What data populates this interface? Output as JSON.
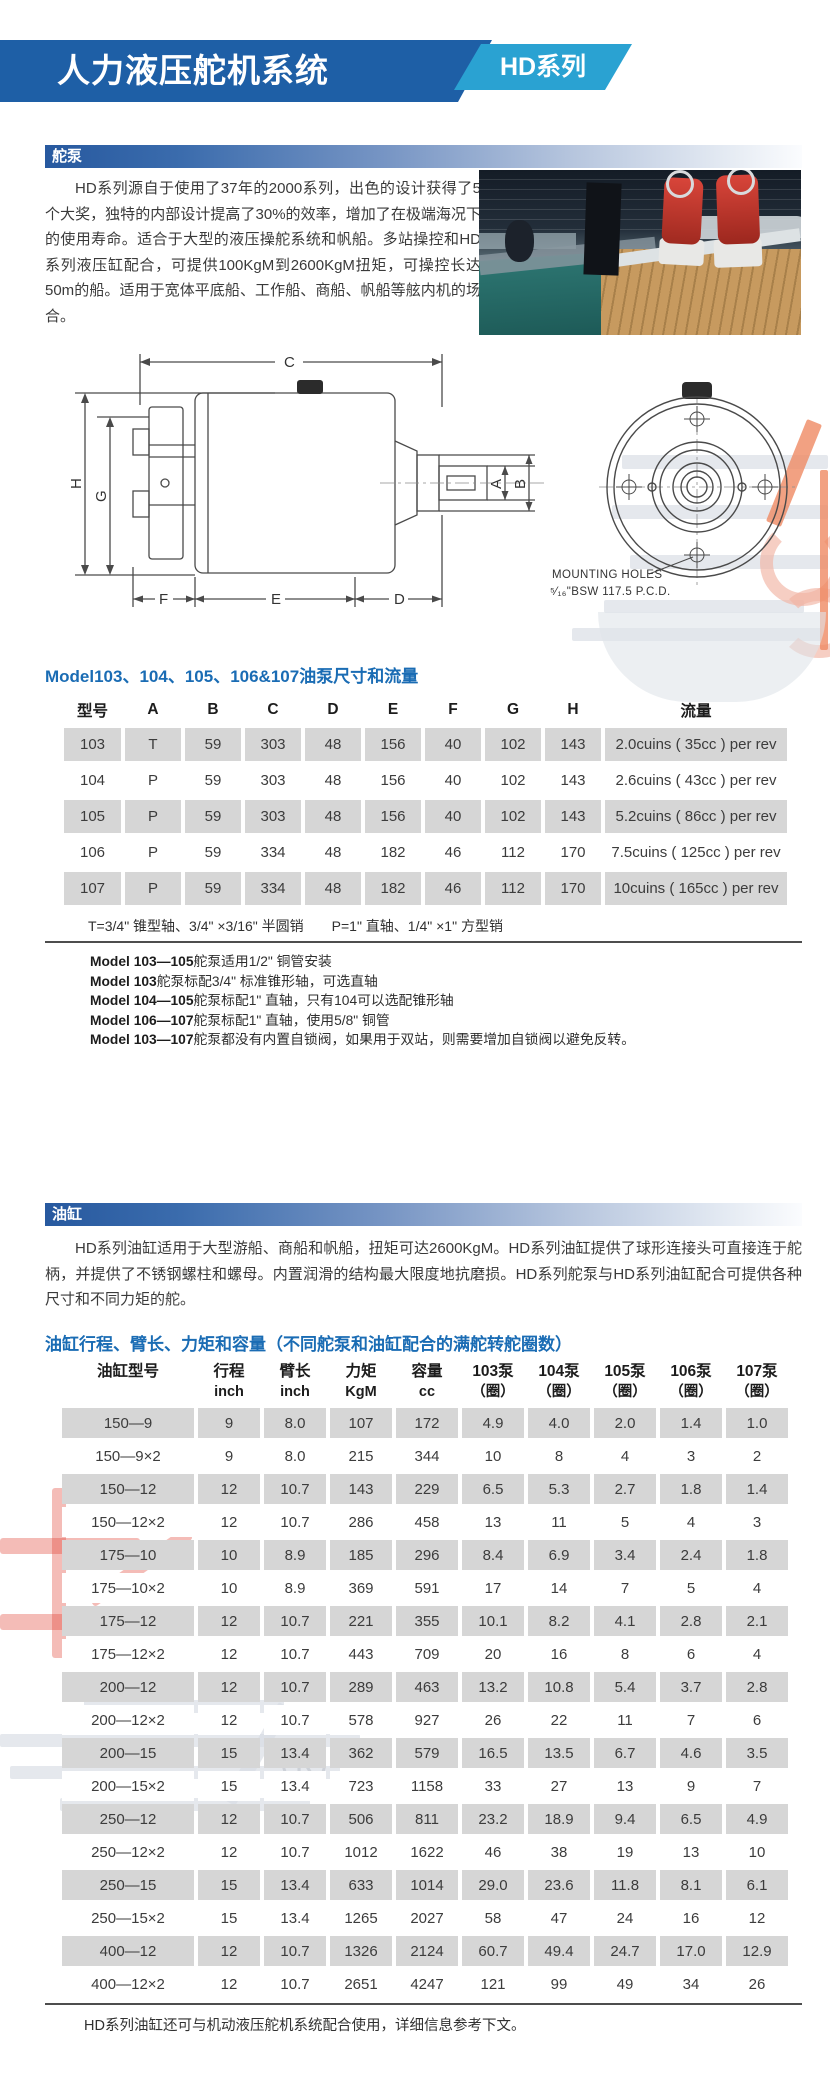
{
  "header": {
    "title": "人力液压舵机系统",
    "badge": "HD系列"
  },
  "pump": {
    "bar_title": "舵泵",
    "paragraph": "HD系列源自于使用了37年的2000系列，出色的设计获得了5个大奖，独特的内部设计提高了30%的效率，增加了在极端海况下的使用寿命。适合于大型的液压操舵系统和帆船。多站操控和HD系列液压缸配合，可提供100KgM到2600KgM扭矩，可操控长达50m的船。适用于宽体平底船、工作船、商船、帆船等舷内机的场合。",
    "diagram": {
      "labels": {
        "c": "C",
        "h": "H",
        "g": "G",
        "a": "A",
        "b": "B",
        "f": "F",
        "e": "E",
        "d": "D"
      },
      "mounting1": "MOUNTING HOLES",
      "mounting2": "⁵⁄₁₆\"BSW 117.5 P.C.D."
    }
  },
  "pump_table": {
    "title": "Model103、104、105、106&107油泵尺寸和流量",
    "columns": [
      "型号",
      "A",
      "B",
      "C",
      "D",
      "E",
      "F",
      "G",
      "H",
      "流量"
    ],
    "rows": [
      [
        "103",
        "T",
        "59",
        "303",
        "48",
        "156",
        "40",
        "102",
        "143",
        "2.0cuins ( 35cc ) per rev"
      ],
      [
        "104",
        "P",
        "59",
        "303",
        "48",
        "156",
        "40",
        "102",
        "143",
        "2.6cuins ( 43cc ) per rev"
      ],
      [
        "105",
        "P",
        "59",
        "303",
        "48",
        "156",
        "40",
        "102",
        "143",
        "5.2cuins ( 86cc ) per rev"
      ],
      [
        "106",
        "P",
        "59",
        "334",
        "48",
        "182",
        "46",
        "112",
        "170",
        "7.5cuins ( 125cc ) per rev"
      ],
      [
        "107",
        "P",
        "59",
        "334",
        "48",
        "182",
        "46",
        "112",
        "170",
        "10cuins ( 165cc ) per rev"
      ]
    ],
    "shaft_note": "T=3/4\" 锥型轴、3/4\" ×3/16\" 半圆销　　P=1\" 直轴、1/4\" ×1\" 方型销",
    "notes": [
      {
        "bold": "Model 103—105",
        "text": "舵泵适用1/2\" 铜管安装"
      },
      {
        "bold": "Model 103",
        "text": "舵泵标配3/4\" 标准锥形轴，可选直轴"
      },
      {
        "bold": "Model 104—105",
        "text": "舵泵标配1\" 直轴，只有104可以选配锥形轴"
      },
      {
        "bold": "Model 106—107",
        "text": "舵泵标配1\" 直轴，使用5/8\" 铜管"
      },
      {
        "bold": "Model 103—107",
        "text": "舵泵都没有内置自锁阀，如果用于双站，则需要增加自锁阀以避免反转。"
      }
    ]
  },
  "cylinder": {
    "bar_title": "油缸",
    "paragraph": "HD系列油缸适用于大型游船、商船和帆船，扭矩可达2600KgM。HD系列油缸提供了球形连接头可直接连于舵柄，并提供了不锈钢螺柱和螺母。内置润滑的结构最大限度地抗磨损。HD系列舵泵与HD系列油缸配合可提供各种尺寸和不同力矩的舵。"
  },
  "cylinder_table": {
    "title": "油缸行程、臂长、力矩和容量（不同舵泵和油缸配合的满舵转舵圈数）",
    "columns": [
      {
        "t": "油缸型号",
        "u": ""
      },
      {
        "t": "行程",
        "u": "inch"
      },
      {
        "t": "臂长",
        "u": "inch"
      },
      {
        "t": "力矩",
        "u": "KgM"
      },
      {
        "t": "容量",
        "u": "cc"
      },
      {
        "t": "103泵",
        "u": "（圈）"
      },
      {
        "t": "104泵",
        "u": "（圈）"
      },
      {
        "t": "105泵",
        "u": "（圈）"
      },
      {
        "t": "106泵",
        "u": "（圈）"
      },
      {
        "t": "107泵",
        "u": "（圈）"
      }
    ],
    "rows": [
      [
        "150—9",
        "9",
        "8.0",
        "107",
        "172",
        "4.9",
        "4.0",
        "2.0",
        "1.4",
        "1.0"
      ],
      [
        "150—9×2",
        "9",
        "8.0",
        "215",
        "344",
        "10",
        "8",
        "4",
        "3",
        "2"
      ],
      [
        "150—12",
        "12",
        "10.7",
        "143",
        "229",
        "6.5",
        "5.3",
        "2.7",
        "1.8",
        "1.4"
      ],
      [
        "150—12×2",
        "12",
        "10.7",
        "286",
        "458",
        "13",
        "11",
        "5",
        "4",
        "3"
      ],
      [
        "175—10",
        "10",
        "8.9",
        "185",
        "296",
        "8.4",
        "6.9",
        "3.4",
        "2.4",
        "1.8"
      ],
      [
        "175—10×2",
        "10",
        "8.9",
        "369",
        "591",
        "17",
        "14",
        "7",
        "5",
        "4"
      ],
      [
        "175—12",
        "12",
        "10.7",
        "221",
        "355",
        "10.1",
        "8.2",
        "4.1",
        "2.8",
        "2.1"
      ],
      [
        "175—12×2",
        "12",
        "10.7",
        "443",
        "709",
        "20",
        "16",
        "8",
        "6",
        "4"
      ],
      [
        "200—12",
        "12",
        "10.7",
        "289",
        "463",
        "13.2",
        "10.8",
        "5.4",
        "3.7",
        "2.8"
      ],
      [
        "200—12×2",
        "12",
        "10.7",
        "578",
        "927",
        "26",
        "22",
        "11",
        "7",
        "6"
      ],
      [
        "200—15",
        "15",
        "13.4",
        "362",
        "579",
        "16.5",
        "13.5",
        "6.7",
        "4.6",
        "3.5"
      ],
      [
        "200—15×2",
        "15",
        "13.4",
        "723",
        "1158",
        "33",
        "27",
        "13",
        "9",
        "7"
      ],
      [
        "250—12",
        "12",
        "10.7",
        "506",
        "811",
        "23.2",
        "18.9",
        "9.4",
        "6.5",
        "4.9"
      ],
      [
        "250—12×2",
        "12",
        "10.7",
        "1012",
        "1622",
        "46",
        "38",
        "19",
        "13",
        "10"
      ],
      [
        "250—15",
        "15",
        "13.4",
        "633",
        "1014",
        "29.0",
        "23.6",
        "11.8",
        "8.1",
        "6.1"
      ],
      [
        "250—15×2",
        "15",
        "13.4",
        "1265",
        "2027",
        "58",
        "47",
        "24",
        "16",
        "12"
      ],
      [
        "400—12",
        "12",
        "10.7",
        "1326",
        "2124",
        "60.7",
        "49.4",
        "24.7",
        "17.0",
        "12.9"
      ],
      [
        "400—12×2",
        "12",
        "10.7",
        "2651",
        "4247",
        "121",
        "99",
        "49",
        "34",
        "26"
      ]
    ],
    "footer": "HD系列油缸还可与机动液压舵机系统配合使用，详细信息参考下文。"
  }
}
